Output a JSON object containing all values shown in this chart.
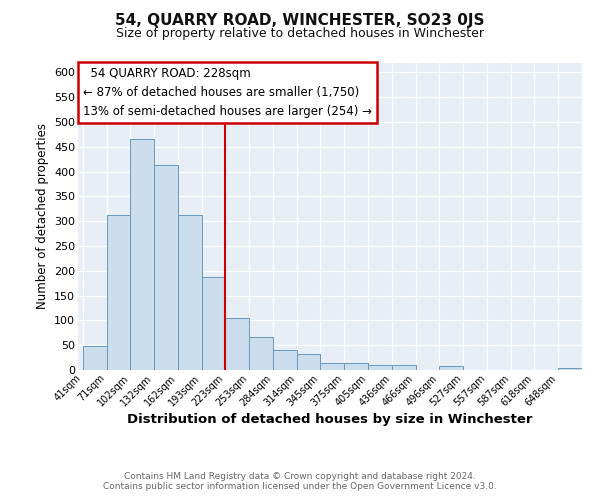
{
  "title": "54, QUARRY ROAD, WINCHESTER, SO23 0JS",
  "subtitle": "Size of property relative to detached houses in Winchester",
  "xlabel": "Distribution of detached houses by size in Winchester",
  "ylabel": "Number of detached properties",
  "bar_labels": [
    "41sqm",
    "71sqm",
    "102sqm",
    "132sqm",
    "162sqm",
    "193sqm",
    "223sqm",
    "253sqm",
    "284sqm",
    "314sqm",
    "345sqm",
    "375sqm",
    "405sqm",
    "436sqm",
    "466sqm",
    "496sqm",
    "527sqm",
    "557sqm",
    "587sqm",
    "618sqm",
    "648sqm"
  ],
  "bar_values": [
    48,
    312,
    465,
    413,
    312,
    188,
    104,
    66,
    40,
    32,
    14,
    14,
    10,
    10,
    0,
    8,
    0,
    0,
    0,
    0,
    5
  ],
  "bar_color": "#ccdded",
  "bar_edge_color": "#6699bb",
  "vline_index": 6,
  "vline_color": "#cc0000",
  "annotation_title": "54 QUARRY ROAD: 228sqm",
  "annotation_line1": "← 87% of detached houses are smaller (1,750)",
  "annotation_line2": "13% of semi-detached houses are larger (254) →",
  "annotation_box_facecolor": "#ffffff",
  "annotation_box_edgecolor": "#cc0000",
  "ylim": [
    0,
    620
  ],
  "yticks": [
    0,
    50,
    100,
    150,
    200,
    250,
    300,
    350,
    400,
    450,
    500,
    550,
    600
  ],
  "footer1": "Contains HM Land Registry data © Crown copyright and database right 2024.",
  "footer2": "Contains public sector information licensed under the Open Government Licence v3.0.",
  "bg_color": "#ffffff",
  "plot_bg_color": "#e8eef5"
}
